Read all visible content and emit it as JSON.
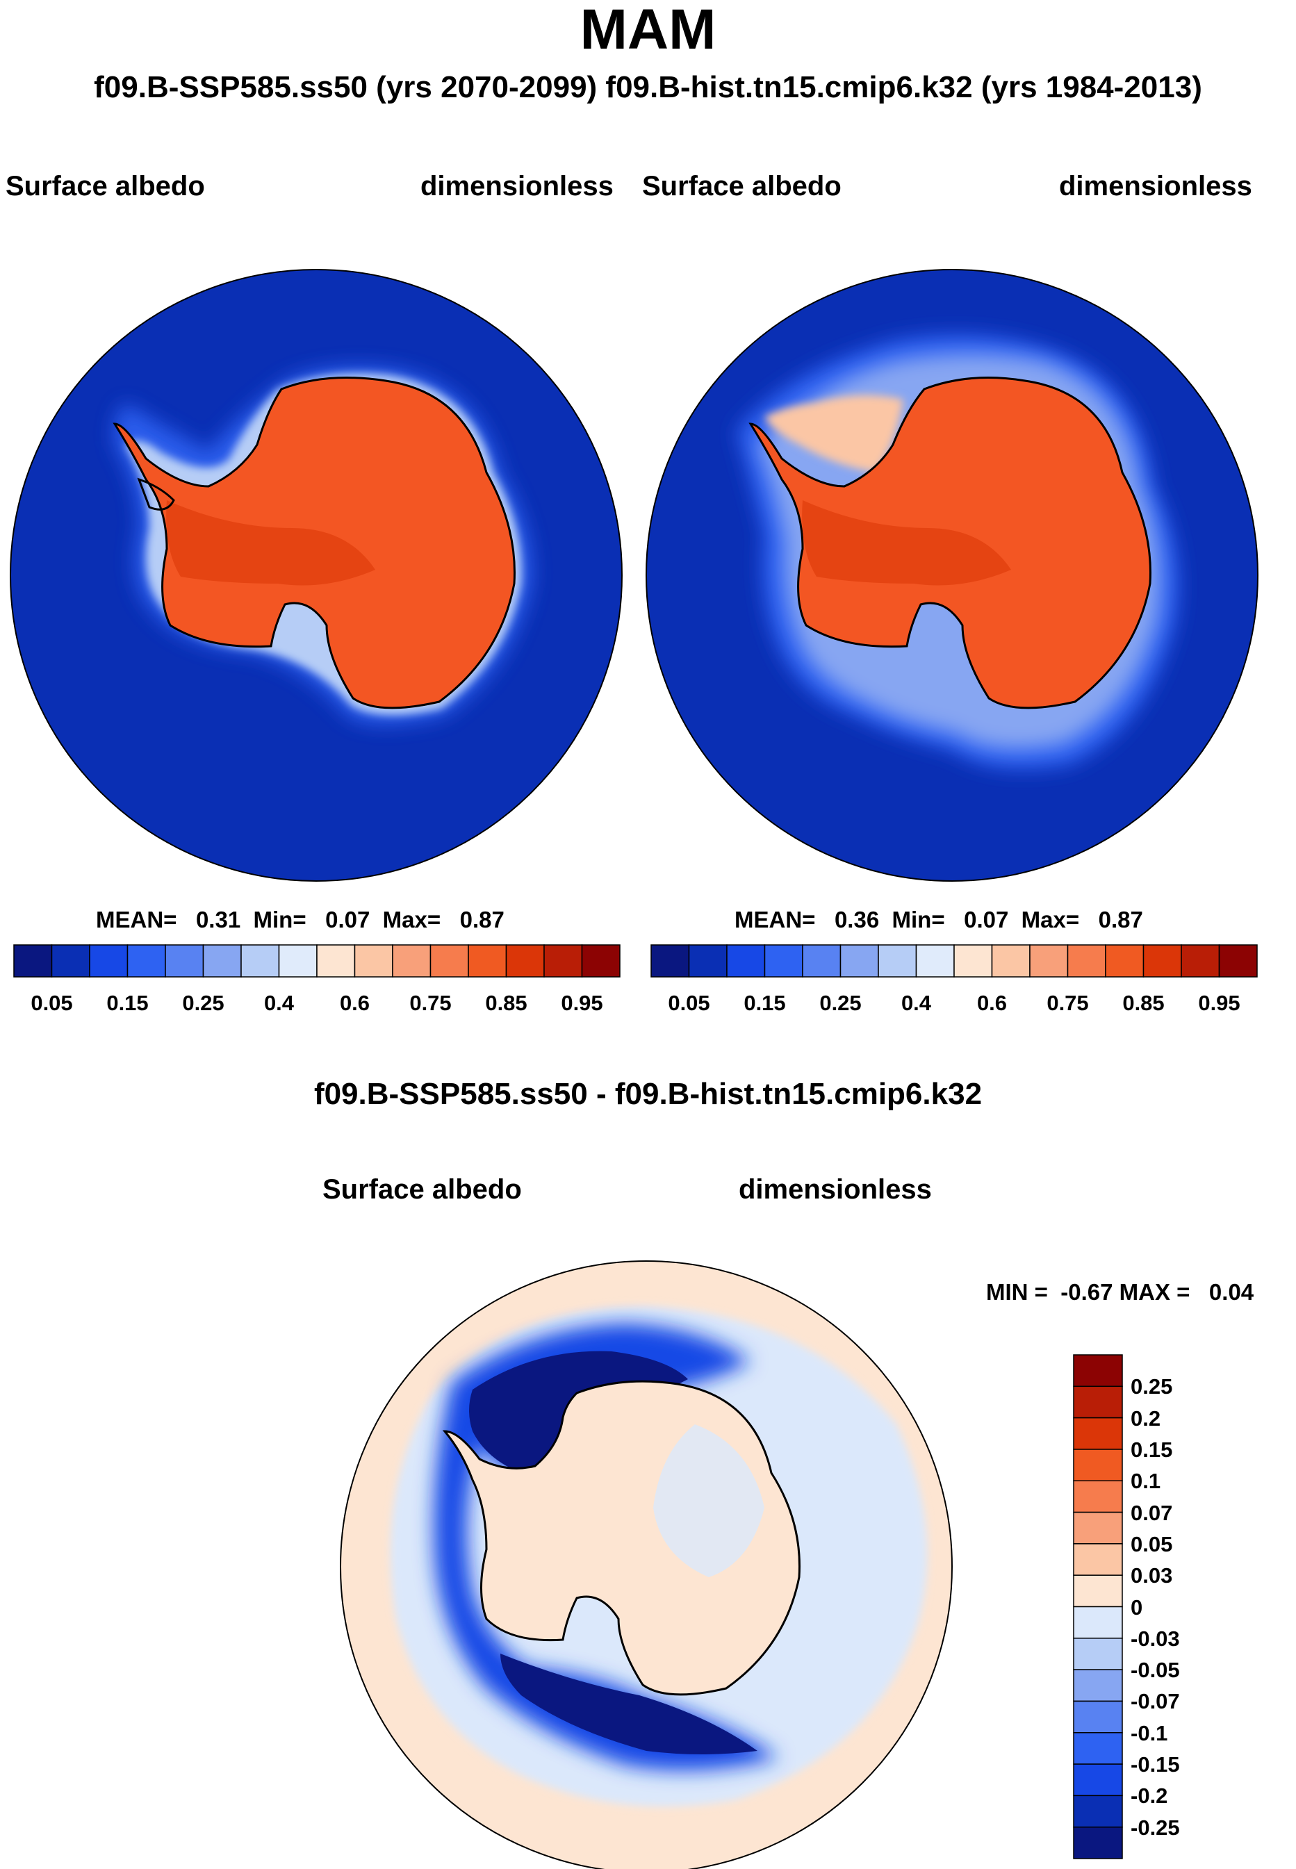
{
  "title": "MAM",
  "subtitle": "f09.B-SSP585.ss50 (yrs 2070-2099)  f09.B-hist.tn15.cmip6.k32 (yrs 1984-2013)",
  "panels": [
    {
      "variable": "Surface albedo",
      "units": "dimensionless",
      "stats": "MEAN=   0.31  Min=   0.07  Max=   0.87",
      "mean": 0.31,
      "min": 0.07,
      "max": 0.87
    },
    {
      "variable": "Surface albedo",
      "units": "dimensionless",
      "stats": "MEAN=   0.36  Min=   0.07  Max=   0.87",
      "mean": 0.36,
      "min": 0.07,
      "max": 0.87
    }
  ],
  "colorbar_abs": {
    "colors": [
      "#0a1780",
      "#0a2fb4",
      "#1748e6",
      "#2e62f2",
      "#5882f2",
      "#87a6f2",
      "#b6cdf6",
      "#e0ebfb",
      "#fde5d2",
      "#fbc6a5",
      "#f8a07a",
      "#f67c4d",
      "#f05a22",
      "#db3608",
      "#b91e06",
      "#8c0303"
    ],
    "tick_labels": [
      "0.05",
      "0.15",
      "0.25",
      "0.4",
      "0.6",
      "0.75",
      "0.85",
      "0.95"
    ]
  },
  "diff": {
    "title": "f09.B-SSP585.ss50 - f09.B-hist.tn15.cmip6.k32",
    "variable": "Surface albedo",
    "units": "dimensionless",
    "minmax": "MIN =  -0.67 MAX =   0.04",
    "min": -0.67,
    "max": 0.04
  },
  "colorbar_diff": {
    "colors": [
      "#8c0303",
      "#b91e06",
      "#db3608",
      "#f05a22",
      "#f67c4d",
      "#f8a07a",
      "#fbc6a5",
      "#fde5d2",
      "#dbe8fb",
      "#b6cdf6",
      "#87a6f2",
      "#5882f2",
      "#2e62f2",
      "#1748e6",
      "#0a2fb4",
      "#0a1780"
    ],
    "tick_labels": [
      "0.25",
      "0.2",
      "0.15",
      "0.1",
      "0.07",
      "0.05",
      "0.03",
      "0",
      "-0.03",
      "-0.05",
      "-0.07",
      "-0.1",
      "-0.15",
      "-0.2",
      "-0.25"
    ]
  },
  "map_colors": {
    "ocean": "#0a2fb4",
    "ice_land": "#f35623",
    "ice_dark": "#e2410f",
    "diff_bg": "#fde5d2",
    "diff_ring": "#dbe8fb"
  }
}
